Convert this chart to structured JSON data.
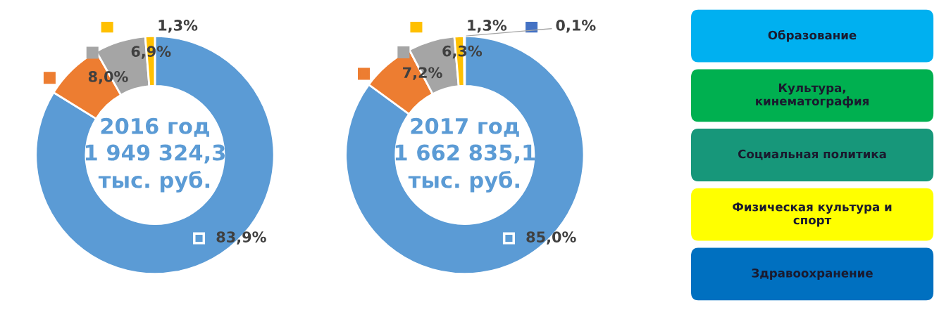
{
  "chart_data": [
    {
      "type": "donut",
      "title": "2016 год\n1 949 324,3\nтыс. руб.",
      "categories": [
        null,
        null,
        null,
        null
      ],
      "values": [
        83.9,
        8.0,
        6.9,
        1.3
      ],
      "colors": [
        "#5b9bd5",
        "#ed7d31",
        "#a5a5a5",
        "#ffc000"
      ],
      "value_labels": [
        "83,9%",
        "8,0%",
        "6,9%",
        "1,3%"
      ]
    },
    {
      "type": "donut",
      "title": "2017 год\n1 662 835,1\nтыс. руб.",
      "categories": [
        null,
        null,
        null,
        null,
        null
      ],
      "values": [
        85.0,
        7.2,
        6.3,
        1.3,
        0.1
      ],
      "colors": [
        "#5b9bd5",
        "#ed7d31",
        "#a5a5a5",
        "#ffc000",
        "#4472c4"
      ],
      "value_labels": [
        "85,0%",
        "7,2%",
        "6,3%",
        "1,3%",
        "0,1%"
      ]
    },
    {
      "type": "other",
      "annotations": [
        "Образование",
        "Культура,\nкинематография",
        "Социальная политика",
        "Физическая культура и\nспорт",
        "Здравоохранение"
      ],
      "colors": [
        "#00b0f0",
        "#00b050",
        "#17977a",
        "#ffff00",
        "#0070c0"
      ]
    }
  ]
}
